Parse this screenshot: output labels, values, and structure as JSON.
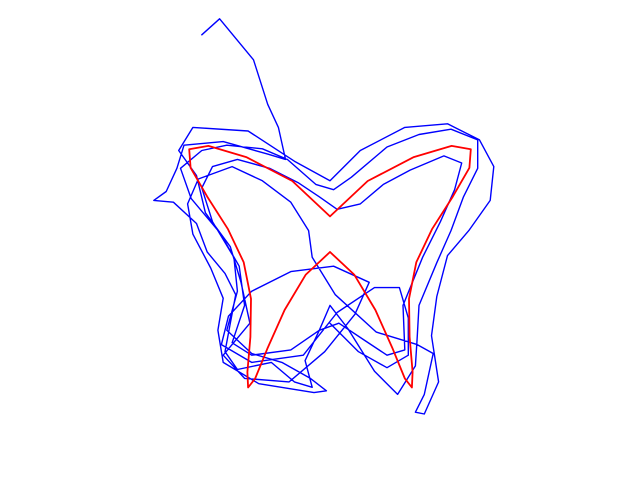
{
  "chart_data": {
    "type": "line",
    "title": "",
    "xlabel": "",
    "ylabel": "",
    "axes_visible": false,
    "grid": false,
    "legend": "none",
    "xlim": [
      -1.8,
      1.8
    ],
    "ylim": [
      -1.35,
      1.35
    ],
    "series": [
      {
        "id": "reference",
        "color": "#ff0000",
        "points": [
          [
            0.0,
            0.0
          ],
          [
            0.136,
            -0.127
          ],
          [
            0.255,
            -0.326
          ],
          [
            0.352,
            -0.544
          ],
          [
            0.421,
            -0.711
          ],
          [
            0.46,
            -0.761
          ],
          [
            0.464,
            -0.674
          ],
          [
            0.447,
            -0.477
          ],
          [
            0.444,
            -0.263
          ],
          [
            0.485,
            -0.058
          ],
          [
            0.573,
            0.128
          ],
          [
            0.69,
            0.311
          ],
          [
            0.783,
            0.473
          ],
          [
            0.791,
            0.577
          ],
          [
            0.683,
            0.596
          ],
          [
            0.468,
            0.532
          ],
          [
            0.212,
            0.399
          ],
          [
            0.0,
            0.2
          ],
          [
            -0.212,
            0.399
          ],
          [
            -0.468,
            0.532
          ],
          [
            -0.683,
            0.596
          ],
          [
            -0.791,
            0.577
          ],
          [
            -0.783,
            0.473
          ],
          [
            -0.69,
            0.311
          ],
          [
            -0.573,
            0.128
          ],
          [
            -0.485,
            -0.058
          ],
          [
            -0.444,
            -0.263
          ],
          [
            -0.447,
            -0.477
          ],
          [
            -0.464,
            -0.674
          ],
          [
            -0.46,
            -0.761
          ],
          [
            -0.421,
            -0.711
          ],
          [
            -0.352,
            -0.544
          ],
          [
            -0.255,
            -0.326
          ],
          [
            -0.136,
            -0.127
          ],
          [
            0.0,
            0.0
          ]
        ]
      },
      {
        "id": "trace",
        "color": "#0000ff",
        "points": [
          [
            -0.72,
            1.22
          ],
          [
            -0.62,
            1.31
          ],
          [
            -0.43,
            1.08
          ],
          [
            -0.35,
            0.83
          ],
          [
            -0.29,
            0.7
          ],
          [
            -0.25,
            0.52
          ],
          [
            -0.35,
            0.55
          ],
          [
            -0.6,
            0.62
          ],
          [
            -0.82,
            0.6
          ],
          [
            -0.86,
            0.47
          ],
          [
            -0.92,
            0.34
          ],
          [
            -0.99,
            0.29
          ],
          [
            -0.88,
            0.28
          ],
          [
            -0.75,
            0.16
          ],
          [
            -0.69,
            0.0
          ],
          [
            -0.59,
            -0.12
          ],
          [
            -0.53,
            -0.24
          ],
          [
            -0.56,
            -0.4
          ],
          [
            -0.59,
            -0.56
          ],
          [
            -0.52,
            -0.66
          ],
          [
            -0.33,
            -0.62
          ],
          [
            -0.2,
            -0.73
          ],
          [
            -0.1,
            -0.76
          ],
          [
            -0.14,
            -0.61
          ],
          [
            -0.06,
            -0.44
          ],
          [
            0.0,
            -0.3
          ],
          [
            0.1,
            -0.43
          ],
          [
            0.25,
            -0.67
          ],
          [
            0.38,
            -0.8
          ],
          [
            0.48,
            -0.64
          ],
          [
            0.49,
            -0.48
          ],
          [
            0.5,
            -0.3
          ],
          [
            0.6,
            -0.06
          ],
          [
            0.68,
            0.12
          ],
          [
            0.75,
            0.31
          ],
          [
            0.83,
            0.47
          ],
          [
            0.83,
            0.63
          ],
          [
            0.68,
            0.69
          ],
          [
            0.5,
            0.66
          ],
          [
            0.32,
            0.59
          ],
          [
            0.12,
            0.42
          ],
          [
            0.02,
            0.35
          ],
          [
            -0.08,
            0.38
          ],
          [
            -0.24,
            0.52
          ],
          [
            -0.38,
            0.58
          ],
          [
            -0.58,
            0.6
          ],
          [
            -0.72,
            0.57
          ],
          [
            -0.84,
            0.47
          ],
          [
            -0.78,
            0.3
          ],
          [
            -0.62,
            0.11
          ],
          [
            -0.51,
            -0.08
          ],
          [
            -0.48,
            -0.3
          ],
          [
            -0.55,
            -0.51
          ],
          [
            -0.44,
            -0.58
          ],
          [
            -0.22,
            -0.55
          ],
          [
            -0.06,
            -0.44
          ],
          [
            0.05,
            -0.4
          ],
          [
            0.2,
            -0.5
          ],
          [
            0.32,
            -0.58
          ],
          [
            0.42,
            -0.55
          ],
          [
            0.41,
            -0.3
          ],
          [
            0.52,
            -0.03
          ],
          [
            0.62,
            0.17
          ],
          [
            0.7,
            0.35
          ],
          [
            0.74,
            0.5
          ],
          [
            0.64,
            0.54
          ],
          [
            0.45,
            0.46
          ],
          [
            0.3,
            0.38
          ],
          [
            0.17,
            0.27
          ],
          [
            0.04,
            0.24
          ],
          [
            -0.06,
            0.31
          ],
          [
            -0.18,
            0.39
          ],
          [
            -0.34,
            0.47
          ],
          [
            -0.52,
            0.52
          ],
          [
            -0.66,
            0.48
          ],
          [
            -0.72,
            0.36
          ],
          [
            -0.66,
            0.17
          ],
          [
            -0.54,
            -0.03
          ],
          [
            -0.52,
            -0.22
          ],
          [
            -0.58,
            -0.44
          ],
          [
            -0.44,
            -0.57
          ],
          [
            -0.27,
            -0.62
          ],
          [
            -0.11,
            -0.71
          ],
          [
            -0.02,
            -0.78
          ],
          [
            -0.09,
            -0.79
          ],
          [
            -0.4,
            -0.74
          ],
          [
            -0.6,
            -0.62
          ],
          [
            -0.63,
            -0.44
          ],
          [
            -0.6,
            -0.26
          ],
          [
            -0.67,
            -0.09
          ],
          [
            -0.77,
            0.1
          ],
          [
            -0.8,
            0.27
          ],
          [
            -0.74,
            0.41
          ],
          [
            -0.55,
            0.48
          ],
          [
            -0.38,
            0.4
          ],
          [
            -0.22,
            0.28
          ],
          [
            -0.12,
            0.12
          ],
          [
            -0.1,
            -0.03
          ],
          [
            0.03,
            -0.24
          ],
          [
            0.26,
            -0.45
          ],
          [
            0.49,
            -0.52
          ],
          [
            0.58,
            -0.57
          ],
          [
            0.53,
            -0.8
          ],
          [
            0.48,
            -0.9
          ],
          [
            0.53,
            -0.91
          ],
          [
            0.61,
            -0.73
          ],
          [
            0.57,
            -0.47
          ],
          [
            0.6,
            -0.25
          ],
          [
            0.66,
            -0.02
          ],
          [
            0.78,
            0.12
          ],
          [
            0.9,
            0.29
          ],
          [
            0.92,
            0.48
          ],
          [
            0.84,
            0.63
          ],
          [
            0.66,
            0.72
          ],
          [
            0.42,
            0.7
          ],
          [
            0.17,
            0.57
          ],
          [
            0.0,
            0.4
          ],
          [
            -0.2,
            0.51
          ],
          [
            -0.46,
            0.68
          ],
          [
            -0.77,
            0.7
          ],
          [
            -0.85,
            0.57
          ],
          [
            -0.75,
            0.43
          ],
          [
            -0.7,
            0.22
          ],
          [
            -0.56,
            0.03
          ],
          [
            -0.5,
            -0.17
          ],
          [
            -0.45,
            -0.4
          ],
          [
            -0.6,
            -0.58
          ],
          [
            -0.48,
            -0.71
          ],
          [
            -0.23,
            -0.73
          ],
          [
            -0.03,
            -0.56
          ],
          [
            0.14,
            -0.35
          ],
          [
            0.22,
            -0.17
          ],
          [
            0.02,
            -0.08
          ],
          [
            -0.22,
            -0.11
          ],
          [
            -0.44,
            -0.22
          ],
          [
            -0.57,
            -0.36
          ],
          [
            -0.61,
            -0.52
          ],
          [
            -0.44,
            -0.62
          ],
          [
            -0.15,
            -0.58
          ],
          [
            0.04,
            -0.34
          ],
          [
            0.25,
            -0.2
          ],
          [
            0.39,
            -0.2
          ],
          [
            0.44,
            -0.37
          ],
          [
            0.44,
            -0.58
          ],
          [
            0.32,
            -0.65
          ],
          [
            0.16,
            -0.56
          ],
          [
            0.0,
            -0.4
          ]
        ]
      }
    ]
  }
}
